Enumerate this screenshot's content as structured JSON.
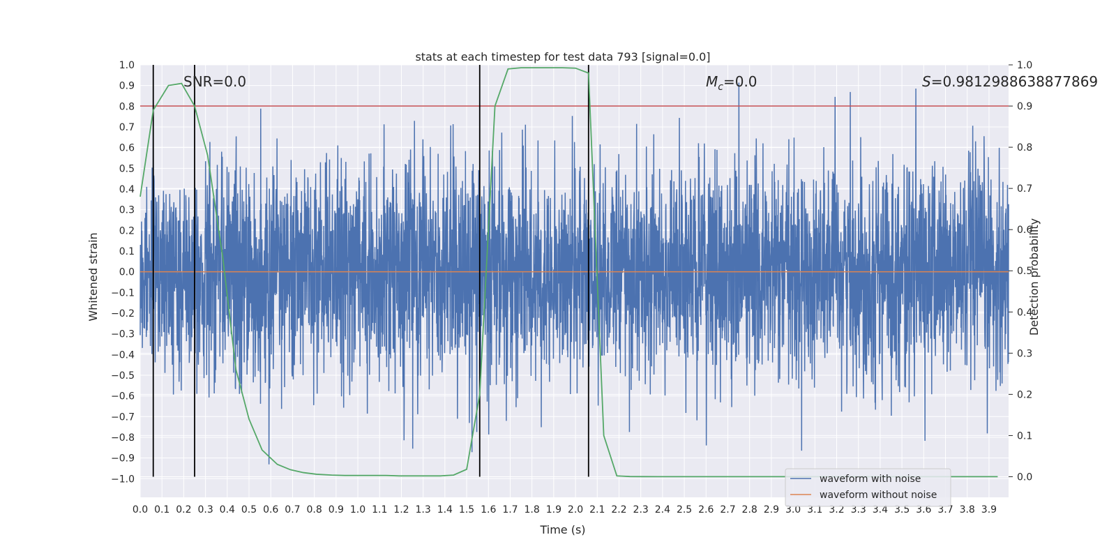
{
  "chart_data": {
    "type": "line",
    "title": "stats at each timestep for test data 793 [signal=0.0]",
    "xlabel": "Time (s)",
    "ylabel": "Whitened strain",
    "y2label": "Detection probability",
    "xlim": [
      0.0,
      3.99
    ],
    "ylim": [
      -1.09,
      1.0
    ],
    "y2lim": [
      -0.05,
      1.0
    ],
    "xticks": [
      "0.0",
      "0.1",
      "0.2",
      "0.3",
      "0.4",
      "0.5",
      "0.6",
      "0.7",
      "0.8",
      "0.9",
      "1.0",
      "1.1",
      "1.2",
      "1.3",
      "1.4",
      "1.5",
      "1.6",
      "1.7",
      "1.8",
      "1.9",
      "2.0",
      "2.1",
      "2.2",
      "2.3",
      "2.4",
      "2.5",
      "2.6",
      "2.7",
      "2.8",
      "2.9",
      "3.0",
      "3.1",
      "3.2",
      "3.3",
      "3.4",
      "3.5",
      "3.6",
      "3.7",
      "3.8",
      "3.9"
    ],
    "yticks": [
      "1.0",
      "0.9",
      "0.8",
      "0.7",
      "0.6",
      "0.5",
      "0.4",
      "0.3",
      "0.2",
      "0.1",
      "0.0",
      "−0.1",
      "−0.2",
      "−0.3",
      "−0.4",
      "−0.5",
      "−0.6",
      "−0.7",
      "−0.8",
      "−0.9",
      "−1.0"
    ],
    "y2ticks": [
      "1.0",
      "0.9",
      "0.8",
      "0.7",
      "0.6",
      "0.5",
      "0.4",
      "0.3",
      "0.2",
      "0.1",
      "0.0"
    ],
    "annotations": {
      "snr": "SNR=0.0",
      "mc_sym": "M",
      "mc_sub": "c",
      "mc_val": "=0.0",
      "s_sym": "S",
      "s_val": "=0.9812988638877869"
    },
    "legend": {
      "position": "lower right",
      "entries": [
        "waveform with noise",
        "waveform without noise"
      ]
    },
    "colors": {
      "noise": "#4c72b0",
      "clean": "#dd8452",
      "probability": "#55a868",
      "threshold": "#c44e52",
      "markers": "#000000",
      "background": "#eaeaf2"
    },
    "series": [
      {
        "name": "waveform with noise",
        "axis": "left",
        "amplitude_range": [
          -1.0,
          0.92
        ],
        "x_range": [
          0.0,
          3.99
        ]
      },
      {
        "name": "waveform without noise",
        "axis": "left",
        "x": [
          0.0,
          3.99
        ],
        "y": [
          0.0,
          0.0
        ]
      },
      {
        "axis": "right",
        "x": [
          0.0,
          0.06,
          0.13,
          0.19,
          0.25,
          0.31,
          0.38,
          0.44,
          0.5,
          0.56,
          0.63,
          0.69,
          0.75,
          0.81,
          0.88,
          0.94,
          1.0,
          1.06,
          1.13,
          1.19,
          1.25,
          1.31,
          1.38,
          1.44,
          1.5,
          1.56,
          1.63,
          1.69,
          1.75,
          1.81,
          1.88,
          1.94,
          2.0,
          2.06,
          2.13,
          2.19,
          2.25,
          2.31,
          2.38,
          2.44,
          2.5,
          2.56,
          2.63,
          2.69,
          2.75,
          2.81,
          2.88,
          2.94,
          3.0,
          3.06,
          3.13,
          3.19,
          3.25,
          3.31,
          3.38,
          3.44,
          3.5,
          3.56,
          3.63,
          3.69,
          3.75,
          3.81,
          3.88,
          3.94
        ],
        "y": [
          0.68,
          0.89,
          0.95,
          0.955,
          0.9,
          0.78,
          0.53,
          0.26,
          0.14,
          0.065,
          0.03,
          0.017,
          0.01,
          0.006,
          0.004,
          0.003,
          0.003,
          0.003,
          0.003,
          0.002,
          0.002,
          0.002,
          0.002,
          0.004,
          0.018,
          0.2,
          0.9,
          0.99,
          0.993,
          0.993,
          0.993,
          0.993,
          0.992,
          0.98,
          0.1,
          0.002,
          0.0005,
          0.0003,
          0.0002,
          0.0002,
          0.0002,
          0.0002,
          0.0002,
          0.0002,
          0.0002,
          0.0002,
          0.0002,
          0.0002,
          0.0002,
          0.0002,
          0.0002,
          0.0002,
          0.0002,
          0.0002,
          0.0002,
          0.0002,
          0.0002,
          0.0002,
          0.0002,
          0.0002,
          0.0002,
          0.0002,
          0.0002,
          0.0002
        ]
      }
    ],
    "threshold_right": 0.9,
    "vertical_markers_x": [
      0.06,
      0.25,
      1.56,
      2.06
    ]
  }
}
